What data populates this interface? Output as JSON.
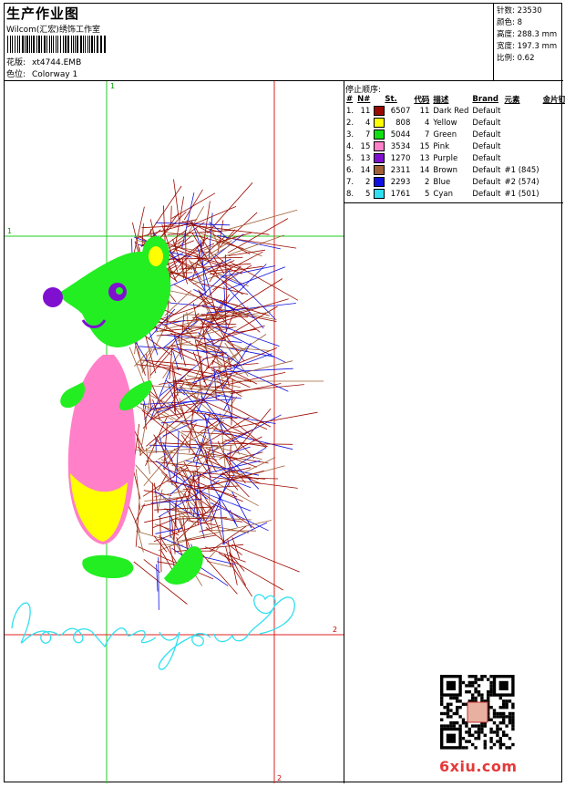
{
  "header": {
    "title": "生产作业图",
    "company": "Wilcom(汇宏)绣饰工作室",
    "design_label": "花版:",
    "design_value": "xt4744.EMB",
    "colorway_label": "色位:",
    "colorway_value": "Colorway 1"
  },
  "stats": {
    "stitches": "针数: 23530",
    "colors": "颜色: 8",
    "height": "高度: 288.3 mm",
    "width": "宽度: 197.3 mm",
    "scale": "比例: 0.62"
  },
  "legend": {
    "title": "停止顺序:",
    "headers": [
      "#",
      "N#",
      "St.",
      "代码",
      "描述",
      "Brand",
      "元素",
      "金片钉"
    ],
    "rows": [
      {
        "idx": "1.",
        "n": "11",
        "color": "#9b0a00",
        "code": "6507",
        "num": "11",
        "desc": "Dark Red",
        "brand": "Default",
        "elem": "",
        "seq": ""
      },
      {
        "idx": "2.",
        "n": "4",
        "color": "#ffff00",
        "code": "808",
        "num": "4",
        "desc": "Yellow",
        "brand": "Default",
        "elem": "",
        "seq": ""
      },
      {
        "idx": "3.",
        "n": "7",
        "color": "#10e010",
        "code": "5044",
        "num": "7",
        "desc": "Green",
        "brand": "Default",
        "elem": "",
        "seq": ""
      },
      {
        "idx": "4.",
        "n": "15",
        "color": "#ff80c8",
        "code": "3534",
        "num": "15",
        "desc": "Pink",
        "brand": "Default",
        "elem": "",
        "seq": ""
      },
      {
        "idx": "5.",
        "n": "13",
        "color": "#8010d0",
        "code": "1270",
        "num": "13",
        "desc": "Purple",
        "brand": "Default",
        "elem": "",
        "seq": ""
      },
      {
        "idx": "6.",
        "n": "14",
        "color": "#a06038",
        "code": "2311",
        "num": "14",
        "desc": "Brown",
        "brand": "Default",
        "elem": "#1 (845)",
        "seq": ""
      },
      {
        "idx": "7.",
        "n": "2",
        "color": "#1010e0",
        "code": "2293",
        "num": "2",
        "desc": "Blue",
        "brand": "Default",
        "elem": "#2 (574)",
        "seq": ""
      },
      {
        "idx": "8.",
        "n": "5",
        "color": "#30e0f0",
        "code": "1761",
        "num": "5",
        "desc": "Cyan",
        "brand": "Default",
        "elem": "#1 (501)",
        "seq": ""
      }
    ]
  },
  "design": {
    "guide_marker_1": "1",
    "guide_marker_2": "2",
    "lettering": "love you"
  },
  "watermark": "6xiu.com"
}
